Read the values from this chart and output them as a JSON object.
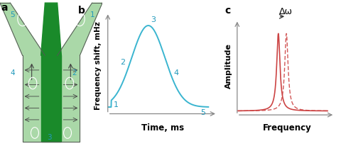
{
  "panel_a_label": "a",
  "panel_b_label": "b",
  "panel_c_label": "c",
  "b_xlabel": "Time, ms",
  "b_ylabel": "Frequency shift, mHz",
  "b_point_labels": [
    "1",
    "2",
    "3",
    "4",
    "5"
  ],
  "c_xlabel": "Frequency",
  "c_ylabel": "Amplitude",
  "c_annotation": "Δω",
  "curve_color": "#3ab5d0",
  "peak_color": "#cc4444",
  "bg_color": "#ffffff",
  "label_color_cyan": "#2299bb",
  "green_dark": "#1a8a2a",
  "green_light": "#aad8a8",
  "arrow_color": "#444444",
  "axis_color": "#888888",
  "outline_color": "#555555"
}
